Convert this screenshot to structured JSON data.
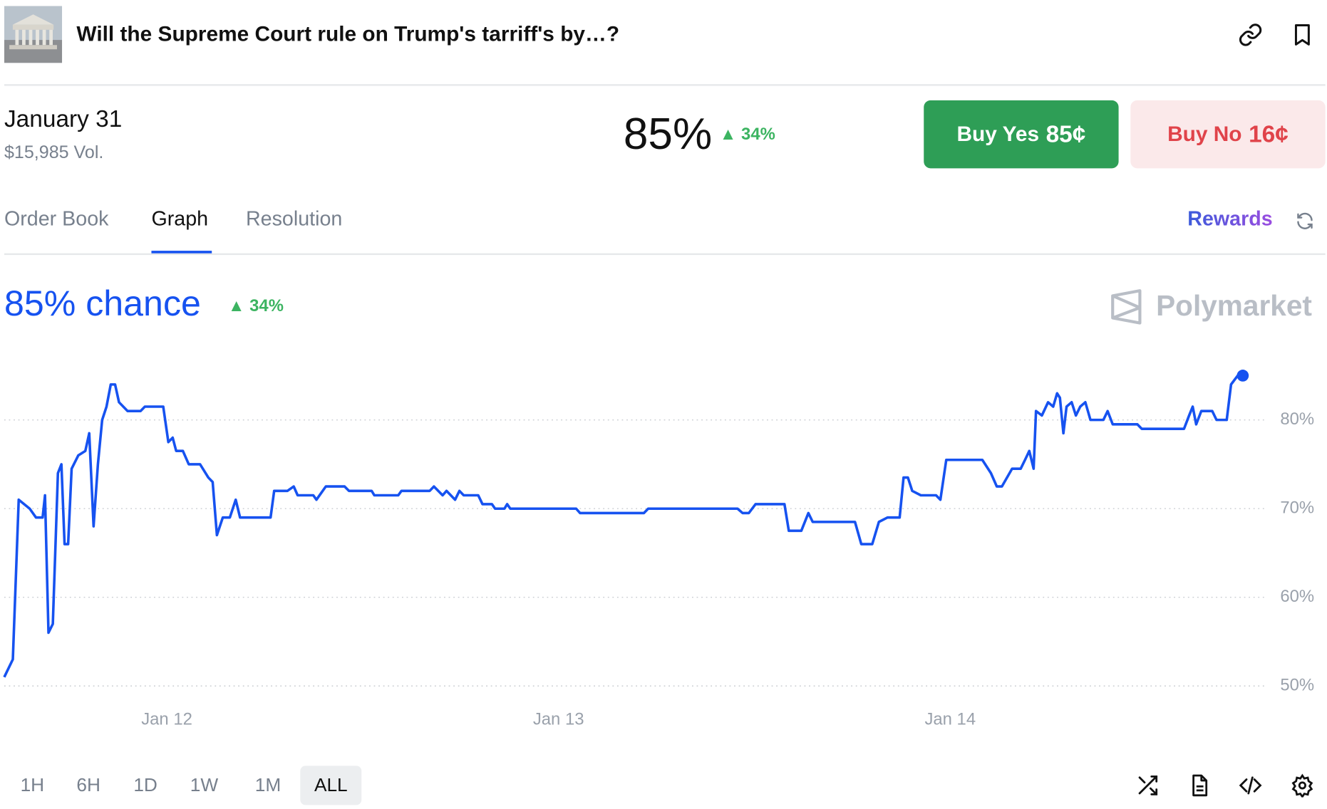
{
  "header": {
    "title": "Will the Supreme Court rule on Trump's tarriff's by…?"
  },
  "market": {
    "date": "January 31",
    "volume": "$15,985 Vol.",
    "price": "85%",
    "change": "34%",
    "buy_yes": {
      "label": "Buy Yes",
      "price": "85¢"
    },
    "buy_no": {
      "label": "Buy No",
      "price": "16¢"
    }
  },
  "tabs": [
    "Order Book",
    "Graph",
    "Resolution"
  ],
  "rewards": "Rewards",
  "chart_data": {
    "type": "line",
    "title": "85% chance",
    "change": "34%",
    "brand": "Polymarket",
    "x": [
      11.585,
      11.607,
      11.622,
      11.65,
      11.666,
      11.683,
      11.689,
      11.698,
      11.709,
      11.722,
      11.731,
      11.739,
      11.748,
      11.757,
      11.774,
      11.792,
      11.802,
      11.813,
      11.824,
      11.835,
      11.846,
      11.857,
      11.868,
      11.878,
      11.9,
      11.933,
      11.944,
      11.991,
      12.004,
      12.015,
      12.024,
      12.041,
      12.056,
      12.085,
      12.106,
      12.117,
      12.128,
      12.143,
      12.161,
      12.176,
      12.187,
      12.265,
      12.274,
      12.308,
      12.324,
      12.334,
      12.374,
      12.382,
      12.406,
      12.454,
      12.465,
      12.523,
      12.53,
      12.591,
      12.599,
      12.671,
      12.682,
      12.704,
      12.714,
      12.736,
      12.747,
      12.758,
      12.795,
      12.806,
      12.83,
      12.838,
      12.862,
      12.869,
      12.877,
      13.045,
      13.055,
      13.218,
      13.229,
      13.457,
      13.47,
      13.486,
      13.503,
      13.577,
      13.588,
      13.62,
      13.638,
      13.649,
      13.757,
      13.773,
      13.801,
      13.818,
      13.84,
      13.871,
      13.881,
      13.892,
      13.903,
      13.925,
      13.964,
      13.975,
      13.99,
      14.082,
      14.104,
      14.119,
      14.132,
      14.158,
      14.18,
      14.191,
      14.202,
      14.213,
      14.219,
      14.234,
      14.25,
      14.263,
      14.273,
      14.28,
      14.289,
      14.297,
      14.31,
      14.321,
      14.332,
      14.345,
      14.358,
      14.391,
      14.402,
      14.415,
      14.478,
      14.489,
      14.597,
      14.61,
      14.619,
      14.628,
      14.641,
      14.669,
      14.68,
      14.706,
      14.717,
      14.734,
      14.747
    ],
    "series": [
      {
        "name": "Yes",
        "color": "#1652f0",
        "values": [
          51,
          53,
          71,
          70,
          69,
          69,
          71.5,
          56,
          57,
          74,
          75,
          66,
          66,
          74.5,
          76,
          76.5,
          78.5,
          68,
          75,
          80,
          81.5,
          84,
          84,
          82,
          81,
          81,
          81.5,
          81.5,
          77.5,
          78,
          76.5,
          76.5,
          75,
          75,
          73.5,
          73,
          67,
          69,
          69,
          71,
          69,
          69,
          72,
          72,
          72.5,
          71.5,
          71.5,
          71,
          72.5,
          72.5,
          72,
          72,
          71.5,
          71.5,
          72,
          72,
          72.5,
          71.5,
          72,
          71,
          72,
          71.5,
          71.5,
          70.5,
          70.5,
          70,
          70,
          70.5,
          70,
          70,
          69.5,
          69.5,
          70,
          70,
          69.5,
          69.5,
          70.5,
          70.5,
          67.5,
          67.5,
          69.5,
          68.5,
          68.5,
          66,
          66,
          68.5,
          69,
          69,
          73.5,
          73.5,
          72,
          71.5,
          71.5,
          71,
          75.5,
          75.5,
          74,
          72.5,
          72.5,
          74.5,
          74.5,
          75.5,
          76.5,
          74.5,
          81,
          80.5,
          82,
          81.5,
          83,
          82.5,
          78.5,
          81.5,
          82,
          80.5,
          81.5,
          82,
          80,
          80,
          81,
          79.5,
          79.5,
          79,
          79,
          80.5,
          81.5,
          79.5,
          81,
          81,
          80,
          80,
          84,
          85,
          85
        ]
      }
    ],
    "xlim": [
      11.585,
      14.81
    ],
    "xticks": [
      {
        "value": 12,
        "label": "Jan 12"
      },
      {
        "value": 13,
        "label": "Jan 13"
      },
      {
        "value": 14,
        "label": "Jan 14"
      }
    ],
    "ylim": [
      50,
      87
    ],
    "yticks": [
      {
        "value": 50,
        "label": "50%"
      },
      {
        "value": 60,
        "label": "60%"
      },
      {
        "value": 70,
        "label": "70%"
      },
      {
        "value": 80,
        "label": "80%"
      }
    ],
    "grid": true
  },
  "time_ranges": [
    "1H",
    "6H",
    "1D",
    "1W",
    "1M",
    "ALL"
  ],
  "active_range": 5
}
